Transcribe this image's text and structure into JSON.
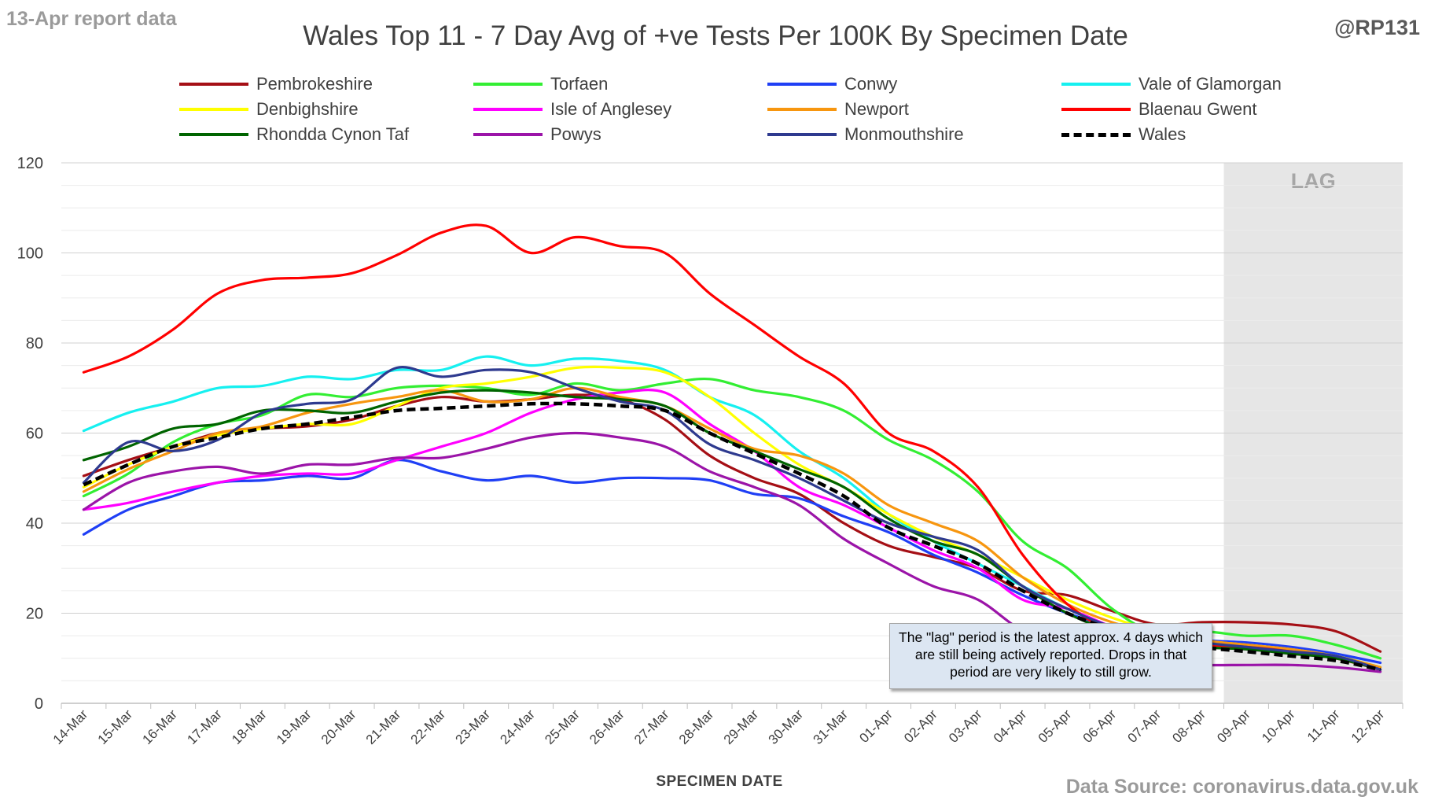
{
  "header": {
    "report_date": "13-Apr report data",
    "handle": "@RP131",
    "source": "Data Source: coronavirus.data.gov.uk"
  },
  "chart_data": {
    "type": "line",
    "title": "Wales Top 11 - 7 Day Avg of +ve Tests Per 100K By Specimen Date",
    "xlabel": "SPECIMEN DATE",
    "ylabel": "",
    "ylim": [
      0,
      120
    ],
    "yticks": [
      0,
      20,
      40,
      60,
      80,
      100,
      120
    ],
    "grid": "horizontal",
    "legend_position": "top",
    "categories": [
      "14-Mar",
      "15-Mar",
      "16-Mar",
      "17-Mar",
      "18-Mar",
      "19-Mar",
      "20-Mar",
      "21-Mar",
      "22-Mar",
      "23-Mar",
      "24-Mar",
      "25-Mar",
      "26-Mar",
      "27-Mar",
      "28-Mar",
      "29-Mar",
      "30-Mar",
      "31-Mar",
      "01-Apr",
      "02-Apr",
      "03-Apr",
      "04-Apr",
      "05-Apr",
      "06-Apr",
      "07-Apr",
      "08-Apr",
      "09-Apr",
      "10-Apr",
      "11-Apr",
      "12-Apr"
    ],
    "lag_label": "LAG",
    "lag_start": "09-Apr",
    "lag_note": "The \"lag\" period is the latest approx. 4 days which are still being actively reported.  Drops in that period are very likely to still grow.",
    "series": [
      {
        "name": "Pembrokeshire",
        "color": "#a50f15",
        "dash": false,
        "values": [
          50.5,
          54,
          57,
          60,
          61,
          61.5,
          63,
          66,
          68,
          67,
          67.5,
          68.5,
          67.5,
          63,
          55,
          50,
          46.5,
          40,
          35,
          32.5,
          30,
          25,
          24,
          20.5,
          17.5,
          18,
          18,
          17.5,
          16,
          11.5
        ]
      },
      {
        "name": "Torfaen",
        "color": "#33ee33",
        "dash": false,
        "values": [
          46,
          51,
          58,
          62,
          64,
          68.5,
          68,
          70,
          70.5,
          70,
          68.5,
          71,
          69.5,
          71,
          72,
          69.5,
          68,
          65,
          58.5,
          54,
          47,
          36,
          30,
          21,
          15.5,
          16,
          15,
          15,
          13,
          10
        ]
      },
      {
        "name": "Conwy",
        "color": "#1f3ff5",
        "dash": false,
        "values": [
          37.5,
          43,
          46,
          49,
          49.5,
          50.5,
          50,
          54,
          51.5,
          49.5,
          50.5,
          49,
          50,
          50,
          49.5,
          46.5,
          45.5,
          41.5,
          38,
          33,
          29,
          24,
          20,
          17,
          15,
          14,
          13.5,
          12.5,
          11,
          9
        ]
      },
      {
        "name": "Vale of Glamorgan",
        "color": "#16f0f0",
        "dash": false,
        "values": [
          60.5,
          64.5,
          67,
          70,
          70.5,
          72.5,
          72,
          74,
          74,
          77,
          75,
          76.5,
          76,
          74,
          68,
          64,
          56,
          50,
          42,
          36,
          31,
          26,
          21,
          17,
          15,
          13.5,
          12.5,
          11.5,
          10.5,
          8
        ]
      },
      {
        "name": "Denbighshire",
        "color": "#ffff00",
        "dash": false,
        "values": [
          48,
          53,
          57,
          59.5,
          61,
          62,
          62,
          66,
          70,
          71,
          72.5,
          74.5,
          74.5,
          73.5,
          68,
          60,
          53,
          48,
          42,
          37,
          33,
          28,
          23,
          19,
          16,
          14,
          13,
          12,
          10.5,
          8
        ]
      },
      {
        "name": "Isle of Anglesey",
        "color": "#ff00ff",
        "dash": false,
        "values": [
          43,
          44.5,
          47,
          49,
          50.5,
          51,
          51,
          54,
          57,
          60,
          64.5,
          67.5,
          69,
          69,
          62,
          56,
          48,
          44,
          39,
          34,
          30,
          23,
          21,
          17,
          14,
          12.5,
          12,
          11,
          10,
          7.5
        ]
      },
      {
        "name": "Newport",
        "color": "#f7960f",
        "dash": false,
        "values": [
          47,
          52,
          56,
          60,
          61.5,
          64.5,
          66.5,
          68,
          69.5,
          67,
          67.5,
          70,
          68,
          66,
          61,
          56.5,
          55,
          51,
          44,
          40,
          36,
          28,
          22,
          18,
          15.5,
          14,
          13,
          12,
          10.5,
          8
        ]
      },
      {
        "name": "Blaenau Gwent",
        "color": "#ff0000",
        "dash": false,
        "values": [
          73.5,
          77,
          83,
          91,
          94,
          94.5,
          95.5,
          99.5,
          104.5,
          106,
          100,
          103.5,
          101.5,
          100,
          91,
          84,
          77,
          71,
          60,
          56,
          48,
          33,
          22,
          16,
          14,
          13,
          12.5,
          11.5,
          10,
          7.5
        ]
      },
      {
        "name": "Rhondda Cynon Taf",
        "color": "#006400",
        "dash": false,
        "values": [
          54,
          57,
          61,
          62,
          65,
          65,
          64.5,
          67,
          69,
          69.5,
          69,
          68,
          67.5,
          66,
          60,
          56,
          52,
          48,
          41,
          36,
          33,
          26,
          20,
          16,
          14,
          12.5,
          12,
          11,
          10,
          7.5
        ]
      },
      {
        "name": "Powys",
        "color": "#9b14a8",
        "dash": false,
        "values": [
          43,
          49,
          51.5,
          52.5,
          51,
          53,
          53,
          54.5,
          54.5,
          56.5,
          59,
          60,
          59,
          57,
          51.5,
          48,
          44,
          36.5,
          31,
          26,
          23,
          16,
          12,
          10,
          9,
          8.5,
          8.5,
          8.5,
          8,
          7
        ]
      },
      {
        "name": "Monmouthshire",
        "color": "#2e3a8f",
        "dash": false,
        "values": [
          49,
          58,
          56,
          58.5,
          64.5,
          66.5,
          67.5,
          74.5,
          72.5,
          74,
          73.5,
          70,
          67,
          65,
          57.5,
          54,
          50,
          45,
          40,
          37,
          34,
          26,
          21,
          17,
          15,
          13.5,
          12.5,
          11.5,
          10.5,
          7.5
        ]
      },
      {
        "name": "Wales",
        "color": "#000000",
        "dash": true,
        "values": [
          48.5,
          53,
          57,
          59,
          61,
          62,
          63.5,
          65,
          65.5,
          66,
          66.5,
          66.5,
          66,
          65,
          60,
          55.5,
          51,
          46,
          39,
          35,
          31,
          25,
          20,
          16.5,
          14.5,
          12.5,
          11.5,
          10.5,
          9.5,
          7.5
        ]
      }
    ]
  }
}
